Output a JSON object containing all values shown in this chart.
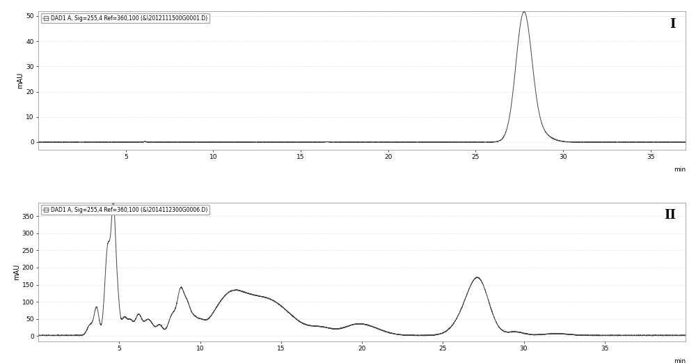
{
  "plot1": {
    "legend_text": "DAD1 A, Sig=255,4 Ref=360,100 (&\\2012111500G0001.D)",
    "ylabel": "mAU",
    "xlabel": "min",
    "xlim": [
      0,
      37
    ],
    "ylim": [
      -3,
      52
    ],
    "yticks": [
      0,
      10,
      20,
      30,
      40,
      50
    ],
    "xticks": [
      5,
      10,
      15,
      20,
      25,
      30,
      35
    ],
    "label": "I",
    "bg_color": "#ffffff",
    "line_color": "#444444",
    "grid_color": "#cccccc"
  },
  "plot2": {
    "legend_text": "DAD1 A, Sig=255,4 Ref=360,100 (&\\2014112300G0006.D)",
    "ylabel": "mAU",
    "xlabel": "min",
    "xlim": [
      0,
      40
    ],
    "ylim": [
      -15,
      390
    ],
    "yticks": [
      0,
      50,
      100,
      150,
      200,
      250,
      300,
      350
    ],
    "xticks": [
      5,
      10,
      15,
      20,
      25,
      30,
      35
    ],
    "label": "II",
    "bg_color": "#ffffff",
    "line_color": "#444444",
    "grid_color": "#cccccc"
  }
}
